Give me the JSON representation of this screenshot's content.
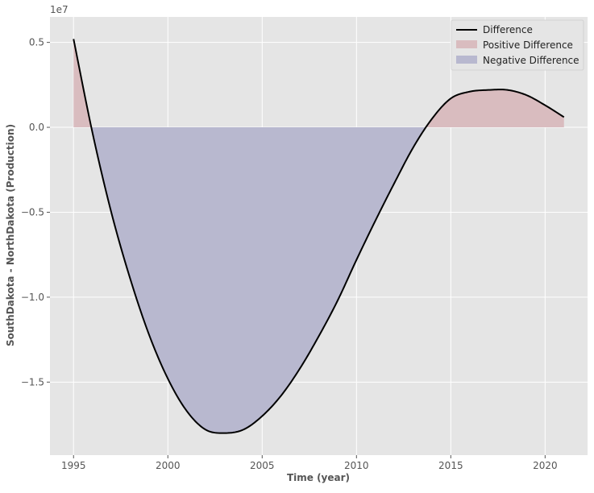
{
  "chart_data": {
    "type": "area",
    "xlabel": "Time (year)",
    "ylabel": "SouthDakota - NorthDakota (Production)",
    "y_offset_label": "1e7",
    "xlim": [
      1993.75,
      2022.25
    ],
    "ylim": [
      -19300000,
      6500000
    ],
    "x_ticks": [
      1995,
      2000,
      2005,
      2010,
      2015,
      2020
    ],
    "x_tick_labels": [
      "1995",
      "2000",
      "2005",
      "2010",
      "2015",
      "2020"
    ],
    "y_ticks": [
      5000000,
      0,
      -5000000,
      -10000000,
      -15000000
    ],
    "y_tick_labels": [
      "0.5",
      "0.0",
      "−0.5",
      "−1.0",
      "−1.5"
    ],
    "grid": true,
    "legend_position": "top-right",
    "series": [
      {
        "name": "Difference",
        "role": "line",
        "color": "#000000",
        "x": [
          1995,
          1996,
          1997,
          1998,
          1999,
          2000,
          2001,
          2002,
          2003,
          2004,
          2005,
          2006,
          2007,
          2008,
          2009,
          2010,
          2011,
          2012,
          2013,
          2014,
          2015,
          2016,
          2017,
          2018,
          2019,
          2020,
          2021
        ],
        "y": [
          5200000,
          -300000,
          -5000000,
          -8900000,
          -12200000,
          -14800000,
          -16700000,
          -17800000,
          -18000000,
          -17800000,
          -17000000,
          -15800000,
          -14200000,
          -12300000,
          -10200000,
          -7800000,
          -5500000,
          -3300000,
          -1200000,
          500000,
          1700000,
          2100000,
          2200000,
          2200000,
          1900000,
          1300000,
          600000
        ]
      },
      {
        "name": "Positive Difference",
        "role": "fill-positive",
        "color": "#d4a5a8"
      },
      {
        "name": "Negative Difference",
        "role": "fill-negative",
        "color": "#a9a9cb"
      }
    ],
    "colors": {
      "plot_background": "#e5e5e5",
      "grid": "#ffffff",
      "line": "#000000",
      "positive_fill": "#d9bcbf",
      "negative_fill": "#b8b8cf"
    }
  }
}
